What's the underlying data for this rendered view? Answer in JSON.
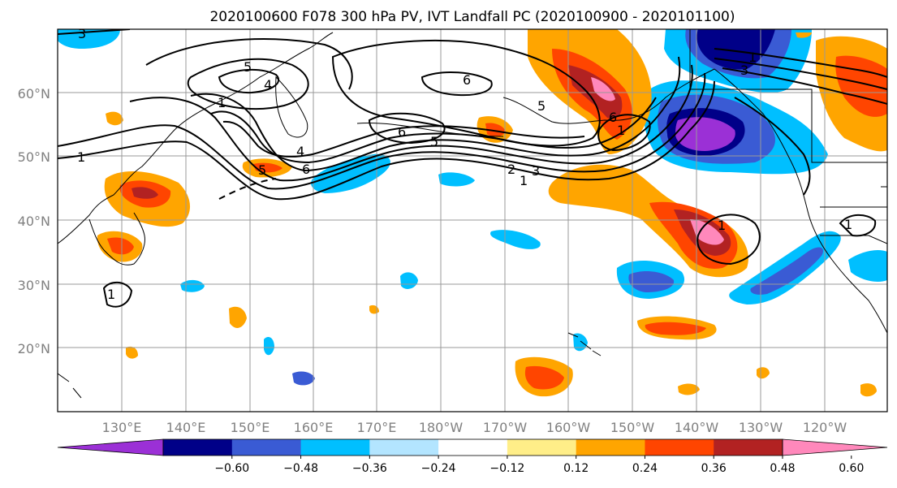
{
  "title": "2020100600 F078 300 hPa PV, IVT Landfall PC (2020100900 - 2020101100)",
  "lon_ticks": [
    "130°E",
    "140°E",
    "150°E",
    "160°E",
    "170°E",
    "180°W",
    "170°W",
    "160°W",
    "150°W",
    "140°W",
    "130°W",
    "120°W"
  ],
  "lat_ticks": [
    "60°N",
    "50°N",
    "40°N",
    "30°N",
    "20°N"
  ],
  "colorbar": {
    "colors": [
      "#9b30d6",
      "#000088",
      "#3a5bd4",
      "#00bfff",
      "#b3e5ff",
      "#ffffff",
      "#ffee88",
      "#ffa500",
      "#ff4500",
      "#b22222",
      "#ff88bb"
    ],
    "labels": [
      "−0.60",
      "−0.48",
      "−0.36",
      "−0.24",
      "−0.12",
      "0.12",
      "0.24",
      "0.36",
      "0.48",
      "0.60"
    ]
  },
  "contour_labels": [
    "3",
    "5",
    "4",
    "1",
    "6",
    "6",
    "5",
    "4",
    "6",
    "5",
    "1",
    "2",
    "3",
    "1",
    "1",
    "6",
    "5",
    "1",
    "3",
    "1",
    "1",
    "1"
  ],
  "colors": {
    "positive_max": "#ff88bb",
    "negative_max": "#9b30d6",
    "contour": "#000000",
    "grid": "#999999",
    "coast": "#000000"
  }
}
